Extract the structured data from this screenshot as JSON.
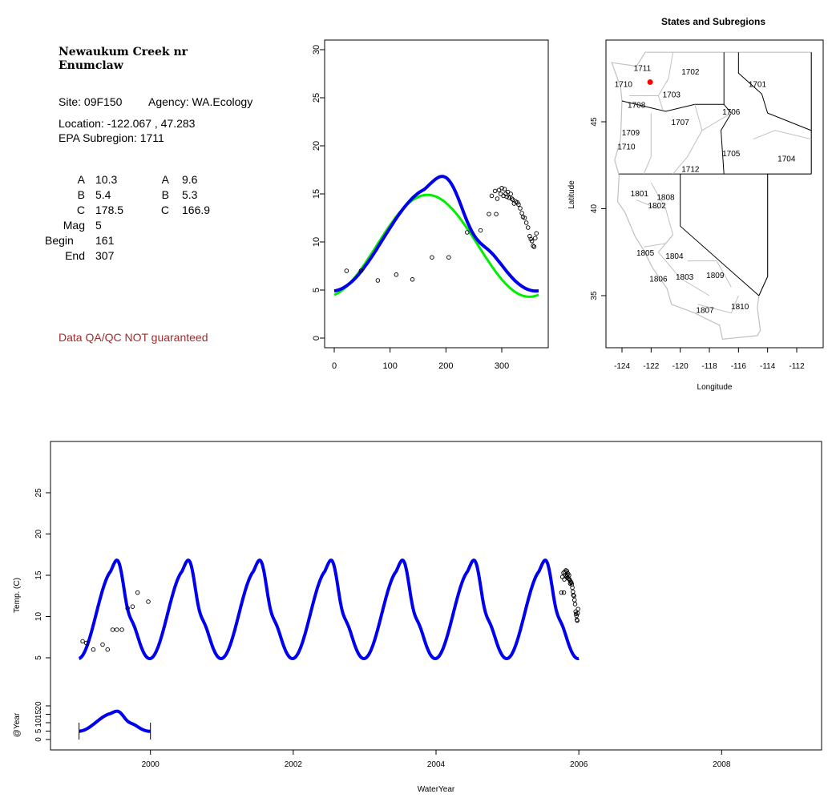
{
  "site": {
    "name_line1": "Newaukum Creek nr",
    "name_line2": "Enumclaw",
    "site_label": "Site: 09F150",
    "agency_label": "Agency: WA.Ecology",
    "location": "Location: -122.067 , 47.283",
    "subregion": "EPA Subregion: 1711",
    "params": {
      "A_label": "A",
      "A1": "10.3",
      "A2": "9.6",
      "B_label": "B",
      "B1": "5.4",
      "B2": "5.3",
      "C_label": "C",
      "C1": "178.5",
      "C2": "166.9",
      "mag_label": "Mag",
      "mag": "5",
      "begin_label": "Begin",
      "begin": "161",
      "end_label": "End",
      "end": "307"
    },
    "qa_note": "Data QA/QC NOT guaranteed"
  },
  "colors": {
    "fit_green": "#00ee00",
    "fit_blue": "#0000ee",
    "point": "#000000",
    "site_marker": "#ff0000",
    "boundary": "#c0c0c0",
    "qa_text": "#a52a2a"
  },
  "chart_data": [
    {
      "type": "scatter",
      "panel": "seasonal",
      "xlim": [
        0,
        366
      ],
      "ylim": [
        0,
        30
      ],
      "x_ticks": [
        0,
        100,
        200,
        300
      ],
      "y_ticks": [
        0,
        5,
        10,
        15,
        20,
        25,
        30
      ],
      "series": [
        {
          "kind": "points",
          "x": [
            22,
            48,
            78,
            111,
            140,
            175,
            205,
            238,
            262,
            277,
            282,
            288,
            290,
            292,
            295,
            298,
            300,
            303,
            305,
            307,
            309,
            311,
            313,
            316,
            318,
            320,
            322,
            325,
            328,
            330,
            333,
            336,
            338,
            341,
            344,
            347,
            350,
            352,
            354,
            356,
            358,
            360,
            362
          ],
          "y": [
            7.0,
            7.0,
            6.0,
            6.6,
            6.1,
            8.4,
            8.4,
            11.0,
            11.2,
            12.9,
            14.8,
            15.3,
            12.9,
            14.5,
            15.4,
            15.0,
            15.6,
            14.8,
            15.5,
            15.0,
            14.7,
            15.2,
            14.6,
            15.0,
            14.5,
            14.4,
            14.0,
            14.2,
            14.1,
            13.9,
            13.5,
            13.0,
            12.6,
            12.5,
            12.0,
            11.5,
            10.6,
            10.3,
            10.1,
            9.6,
            9.5,
            10.4,
            10.9
          ]
        },
        {
          "kind": "fit",
          "color": "green",
          "A": 9.6,
          "B": 5.3,
          "C": 166.9
        },
        {
          "kind": "fit",
          "color": "blue",
          "A": 10.3,
          "B": 5.4,
          "C": 178.5,
          "mag": 5,
          "begin": 161,
          "end": 307
        }
      ]
    },
    {
      "type": "line",
      "panel": "timeseries",
      "xlabel": "WaterYear",
      "ylabel": "Temp. (C)",
      "ylabel2": "@Year",
      "xlim": [
        1998.6,
        2009.4
      ],
      "x_ticks": [
        2000,
        2002,
        2004,
        2006,
        2008
      ],
      "y_ticks": [
        5,
        10,
        15,
        20,
        25
      ],
      "y2_ticks": [
        0,
        5,
        10,
        15,
        20
      ],
      "fit_range": [
        1999.0,
        2006.0
      ],
      "points": {
        "x": [
          1999.05,
          1999.1,
          1999.2,
          1999.33,
          1999.4,
          1999.47,
          1999.53,
          1999.6,
          1999.68,
          1999.75,
          1999.82,
          1999.97
        ],
        "y": [
          7.0,
          6.8,
          6.0,
          6.6,
          6.0,
          8.4,
          8.4,
          8.4,
          11.0,
          11.2,
          12.9,
          11.8
        ]
      },
      "late_points_range": [
        2005.75,
        2006.0
      ]
    },
    {
      "type": "map",
      "panel": "subregions",
      "title": "States and Subregions",
      "xlabel": "Longitude",
      "ylabel": "Latitude",
      "xlim": [
        -125.2,
        -110.8
      ],
      "ylim": [
        32.5,
        49.5
      ],
      "x_ticks": [
        -124,
        -122,
        -120,
        -118,
        -116,
        -114,
        -112
      ],
      "y_ticks": [
        35,
        40,
        45
      ],
      "site": {
        "lon": -122.067,
        "lat": 47.283
      },
      "labels": [
        {
          "text": "1711",
          "lon": -122.6,
          "lat": 48.1
        },
        {
          "text": "1710",
          "lon": -123.9,
          "lat": 47.2
        },
        {
          "text": "1702",
          "lon": -119.3,
          "lat": 47.9
        },
        {
          "text": "1701",
          "lon": -114.7,
          "lat": 47.2
        },
        {
          "text": "1703",
          "lon": -120.6,
          "lat": 46.6
        },
        {
          "text": "1708",
          "lon": -123.0,
          "lat": 46.0
        },
        {
          "text": "1706",
          "lon": -116.5,
          "lat": 45.6
        },
        {
          "text": "1707",
          "lon": -120.0,
          "lat": 45.0
        },
        {
          "text": "1709",
          "lon": -123.4,
          "lat": 44.4
        },
        {
          "text": "1710",
          "lon": -123.7,
          "lat": 43.6
        },
        {
          "text": "1705",
          "lon": -116.5,
          "lat": 43.2
        },
        {
          "text": "1704",
          "lon": -112.7,
          "lat": 42.9
        },
        {
          "text": "1712",
          "lon": -119.3,
          "lat": 42.3
        },
        {
          "text": "1801",
          "lon": -122.8,
          "lat": 40.9
        },
        {
          "text": "1808",
          "lon": -121.0,
          "lat": 40.7
        },
        {
          "text": "1802",
          "lon": -121.6,
          "lat": 40.2
        },
        {
          "text": "1805",
          "lon": -122.4,
          "lat": 37.5
        },
        {
          "text": "1804",
          "lon": -120.4,
          "lat": 37.3
        },
        {
          "text": "1806",
          "lon": -121.5,
          "lat": 36.0
        },
        {
          "text": "1803",
          "lon": -119.7,
          "lat": 36.1
        },
        {
          "text": "1809",
          "lon": -117.6,
          "lat": 36.2
        },
        {
          "text": "1807",
          "lon": -118.3,
          "lat": 34.2
        },
        {
          "text": "1810",
          "lon": -115.9,
          "lat": 34.4
        }
      ]
    }
  ]
}
